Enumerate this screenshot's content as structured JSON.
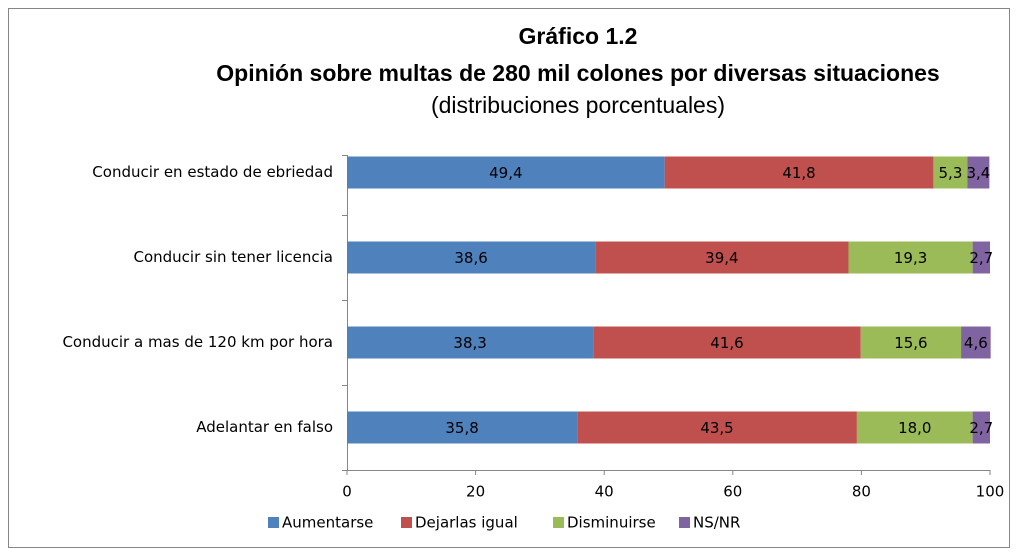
{
  "chart_data": {
    "type": "stacked_barh",
    "title": [
      "Gráfico 1.2",
      "Opinión sobre multas de 280 mil colones por diversas situaciones"
    ],
    "subtitle": "(distribuciones porcentuales)",
    "categories": [
      "Conducir en estado de ebriedad",
      "Conducir sin tener licencia",
      "Conducir a mas de 120 km por hora",
      "Adelantar en falso"
    ],
    "series": [
      {
        "name": "Aumentarse",
        "color": "#4f81bd",
        "values": [
          49.4,
          38.6,
          38.3,
          35.8
        ],
        "value_labels": [
          "49,4",
          "38,6",
          "38,3",
          "35,8"
        ]
      },
      {
        "name": "Dejarlas igual",
        "color": "#c0504d",
        "values": [
          41.8,
          39.4,
          41.6,
          43.5
        ],
        "value_labels": [
          "41,8",
          "39,4",
          "41,6",
          "43,5"
        ]
      },
      {
        "name": "Disminuirse",
        "color": "#9bbb59",
        "values": [
          5.3,
          19.3,
          15.6,
          18.0
        ],
        "value_labels": [
          "5,3",
          "19,3",
          "15,6",
          "18,0"
        ]
      },
      {
        "name": "NS/NR",
        "color": "#8064a2",
        "values": [
          3.4,
          2.7,
          4.6,
          2.7
        ],
        "value_labels": [
          "3,4",
          "2,7",
          "4,6",
          "2,7"
        ]
      }
    ],
    "xlim": [
      0,
      100
    ],
    "xticks": [
      0,
      20,
      40,
      60,
      80,
      100
    ],
    "legend": "bottom"
  }
}
